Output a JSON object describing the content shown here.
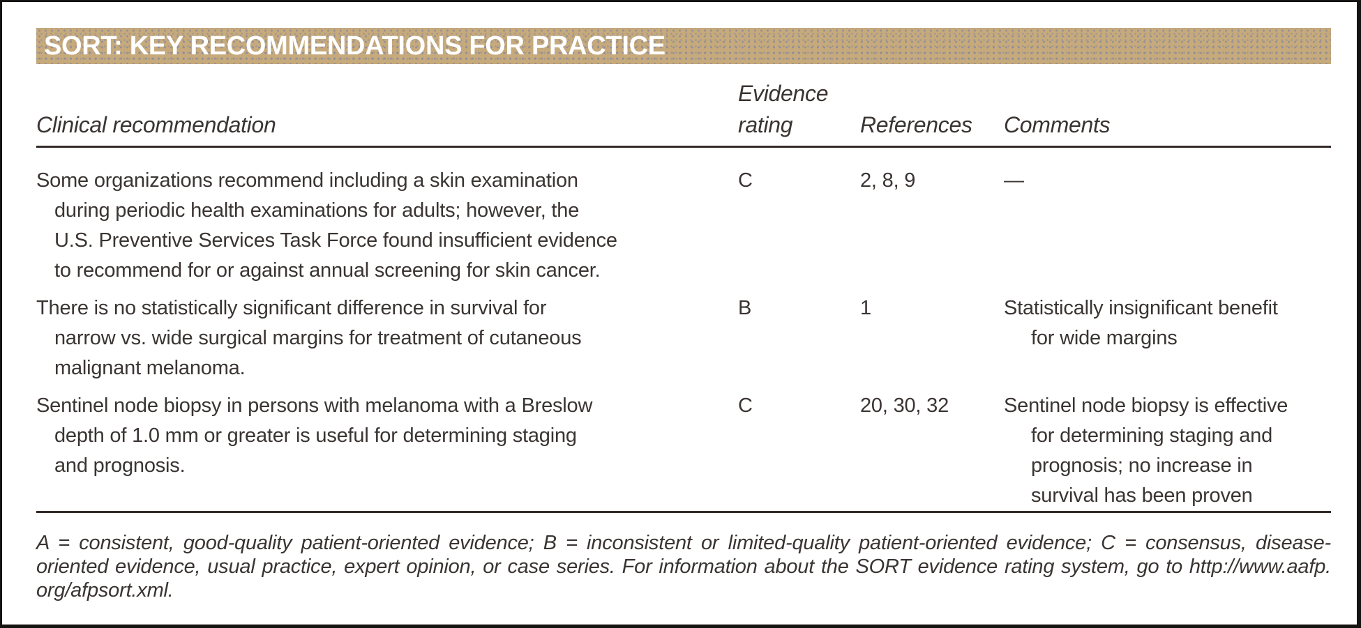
{
  "title": "SORT: KEY RECOMMENDATIONS FOR PRACTICE",
  "colors": {
    "header_bar": "#c6aa7c",
    "header_bar_dots": "#7a81a6",
    "title_text": "#ffffff",
    "body_text": "#3a3432",
    "rule": "#332b28",
    "frame_border": "#161413",
    "background": "#ffffff"
  },
  "table": {
    "headers": {
      "clinical": "Clinical recommendation",
      "evidence_line1": "Evidence",
      "evidence_line2": "rating",
      "references": "References",
      "comments": "Comments"
    },
    "rows": [
      {
        "recommendation_lines": [
          "Some organizations recommend including a skin examination",
          "during periodic health examinations for adults; however, the",
          "U.S. Preventive Services Task Force found insufficient evidence",
          "to recommend for or against annual screening for skin cancer."
        ],
        "evidence_rating": "C",
        "references": "2, 8, 9",
        "comment_lines": {
          "0": "—"
        }
      },
      {
        "recommendation_lines": [
          "There is no statistically significant difference in survival for",
          "narrow vs. wide surgical margins for treatment of cutaneous",
          "malignant melanoma."
        ],
        "evidence_rating": "B",
        "references": "1",
        "comment_lines": {
          "0": "Statistically insignificant benefit",
          "1": "for wide margins"
        }
      },
      {
        "recommendation_lines": [
          "Sentinel node biopsy in persons with melanoma with a Breslow",
          "depth of 1.0 mm or greater is useful for determining staging",
          "and prognosis."
        ],
        "evidence_rating": "C",
        "references": "20, 30, 32",
        "comment_lines": {
          "0": "Sentinel node biopsy is effective",
          "1": "for determining staging and",
          "2": "prognosis; no increase in",
          "3": "survival has been proven"
        }
      }
    ]
  },
  "footnote": {
    "lines": [
      "A = consistent, good-quality patient-oriented evidence; B = inconsistent or limited-quality patient-oriented evidence; C = consensus, disease-",
      "oriented evidence, usual practice, expert opinion, or case series. For information about the SORT evidence rating system, go to http://www.aafp.",
      "org/afpsort.xml."
    ]
  }
}
